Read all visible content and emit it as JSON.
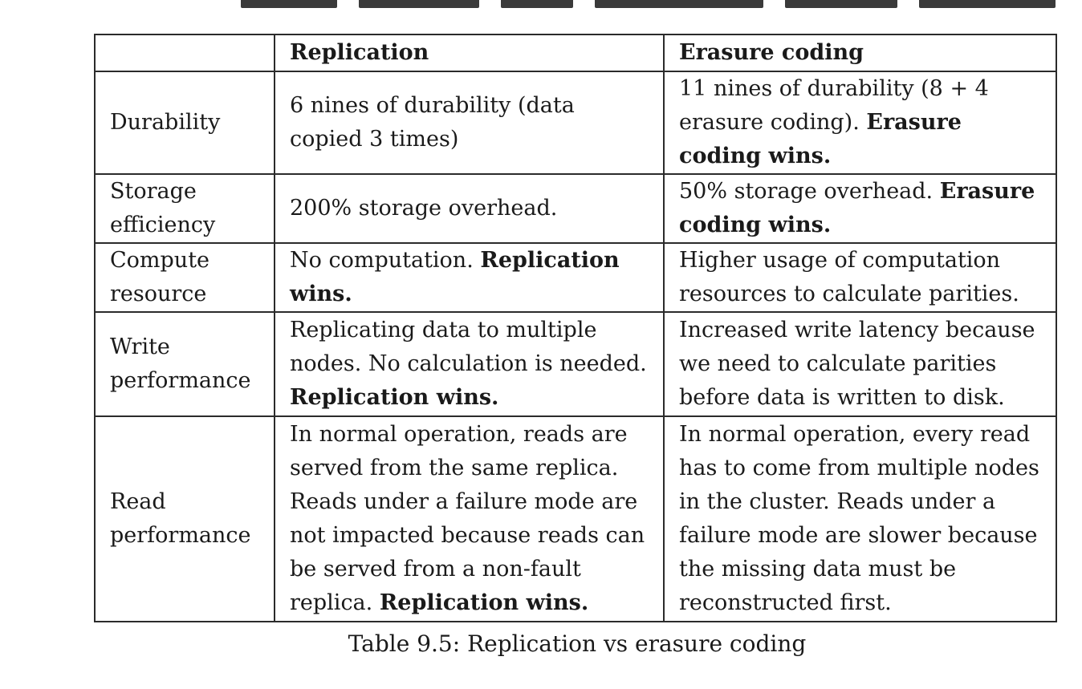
{
  "table": {
    "headers": [
      "",
      "Replication",
      "Erasure coding"
    ],
    "rows": [
      {
        "label": "Durability",
        "replication": "6 nines of durability (data copied 3 times)",
        "replication_win": "",
        "erasure": "11 nines of durability (8 + 4 erasure coding).",
        "erasure_win": "Erasure coding wins."
      },
      {
        "label": "Storage efficiency",
        "replication": "200% storage overhead.",
        "replication_win": "",
        "erasure": "50% storage overhead.",
        "erasure_win": "Erasure coding wins."
      },
      {
        "label": "Compute resource",
        "replication": "No computation.",
        "replication_win": "Replication wins.",
        "erasure": "Higher usage of computation resources to calculate parities.",
        "erasure_win": ""
      },
      {
        "label": "Write performance",
        "replication": "Replicating data to multiple nodes. No calculation is needed.",
        "replication_win": "Replication wins.",
        "erasure": "Increased write latency because we need to calculate parities before data is written to disk.",
        "erasure_win": ""
      },
      {
        "label": "Read performance",
        "replication": "In normal operation, reads are served from the same replica. Reads under a failure mode are not impacted because reads can be served from a non-fault replica.",
        "replication_win": "Replication wins.",
        "erasure": "In normal operation, every read has to come from multiple nodes in the cluster. Reads under a failure mode are slower because the missing data must be reconstructed first.",
        "erasure_win": ""
      }
    ]
  },
  "caption": "Table 9.5: Replication vs erasure coding"
}
